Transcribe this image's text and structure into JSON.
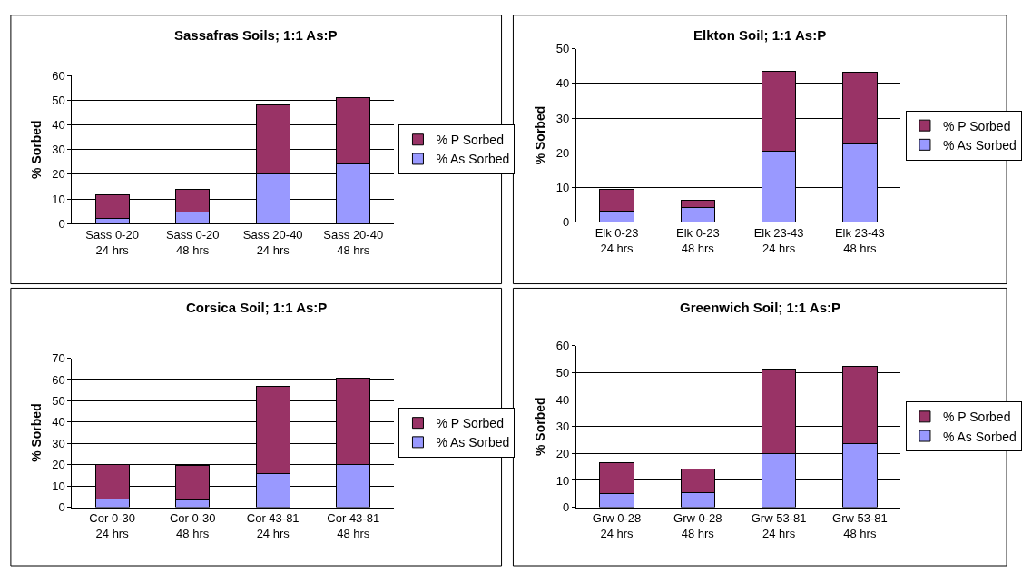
{
  "chart_data": [
    {
      "type": "bar",
      "title": "Sassafras Soils; 1:1 As:P",
      "ylabel": "% Sorbed",
      "categories": [
        "Sass 0-20\n24 hrs",
        "Sass 0-20\n48 hrs",
        "Sass 20-40\n24 hrs",
        "Sass 20-40\n48 hrs"
      ],
      "stacked": true,
      "ylim": [
        0,
        60
      ],
      "yticks": [
        0,
        10,
        20,
        30,
        40,
        50,
        60
      ],
      "grid": "y",
      "legend": "right",
      "series": [
        {
          "name": "% As Sorbed",
          "color": "#9999ff",
          "values": [
            2,
            4.7,
            20,
            24.3
          ]
        },
        {
          "name": "% P Sorbed",
          "color": "#993366",
          "values": [
            9.5,
            9.1,
            28,
            26.7
          ]
        }
      ]
    },
    {
      "type": "bar",
      "title": "Elkton Soil; 1:1 As:P",
      "ylabel": "% Sorbed",
      "categories": [
        "Elk 0-23\n24 hrs",
        "Elk 0-23\n48 hrs",
        "Elk 23-43\n24 hrs",
        "Elk 23-43\n48 hrs"
      ],
      "stacked": true,
      "ylim": [
        0,
        50
      ],
      "yticks": [
        0,
        10,
        20,
        30,
        40,
        50
      ],
      "grid": "y",
      "legend": "right",
      "series": [
        {
          "name": "% As Sorbed",
          "color": "#9999ff",
          "values": [
            3.2,
            4.2,
            20.3,
            22.5
          ]
        },
        {
          "name": "% P Sorbed",
          "color": "#993366",
          "values": [
            6.1,
            1.9,
            23.2,
            20.7
          ]
        }
      ]
    },
    {
      "type": "bar",
      "title": "Corsica Soil; 1:1 As:P",
      "ylabel": "% Sorbed",
      "categories": [
        "Cor 0-30\n24 hrs",
        "Cor 0-30\n48 hrs",
        "Cor 43-81\n24 hrs",
        "Cor 43-81\n48 hrs"
      ],
      "stacked": true,
      "ylim": [
        0,
        70
      ],
      "yticks": [
        0,
        10,
        20,
        30,
        40,
        50,
        60,
        70
      ],
      "grid": "y",
      "legend": "right",
      "series": [
        {
          "name": "% As Sorbed",
          "color": "#9999ff",
          "values": [
            4,
            3.5,
            16,
            20
          ]
        },
        {
          "name": "% P Sorbed",
          "color": "#993366",
          "values": [
            16,
            16,
            41,
            40.5
          ]
        }
      ]
    },
    {
      "type": "bar",
      "title": "Greenwich Soil; 1:1 As:P",
      "ylabel": "% Sorbed",
      "categories": [
        "Grw 0-28\n24 hrs",
        "Grw 0-28\n48 hrs",
        "Grw 53-81\n24 hrs",
        "Grw 53-81\n48 hrs"
      ],
      "stacked": true,
      "ylim": [
        0,
        60
      ],
      "yticks": [
        0,
        10,
        20,
        30,
        40,
        50,
        60
      ],
      "grid": "y",
      "legend": "right",
      "series": [
        {
          "name": "% As Sorbed",
          "color": "#9999ff",
          "values": [
            5,
            5.5,
            20,
            23.5
          ]
        },
        {
          "name": "% P Sorbed",
          "color": "#993366",
          "values": [
            11.7,
            8.7,
            31.5,
            29
          ]
        }
      ]
    }
  ]
}
